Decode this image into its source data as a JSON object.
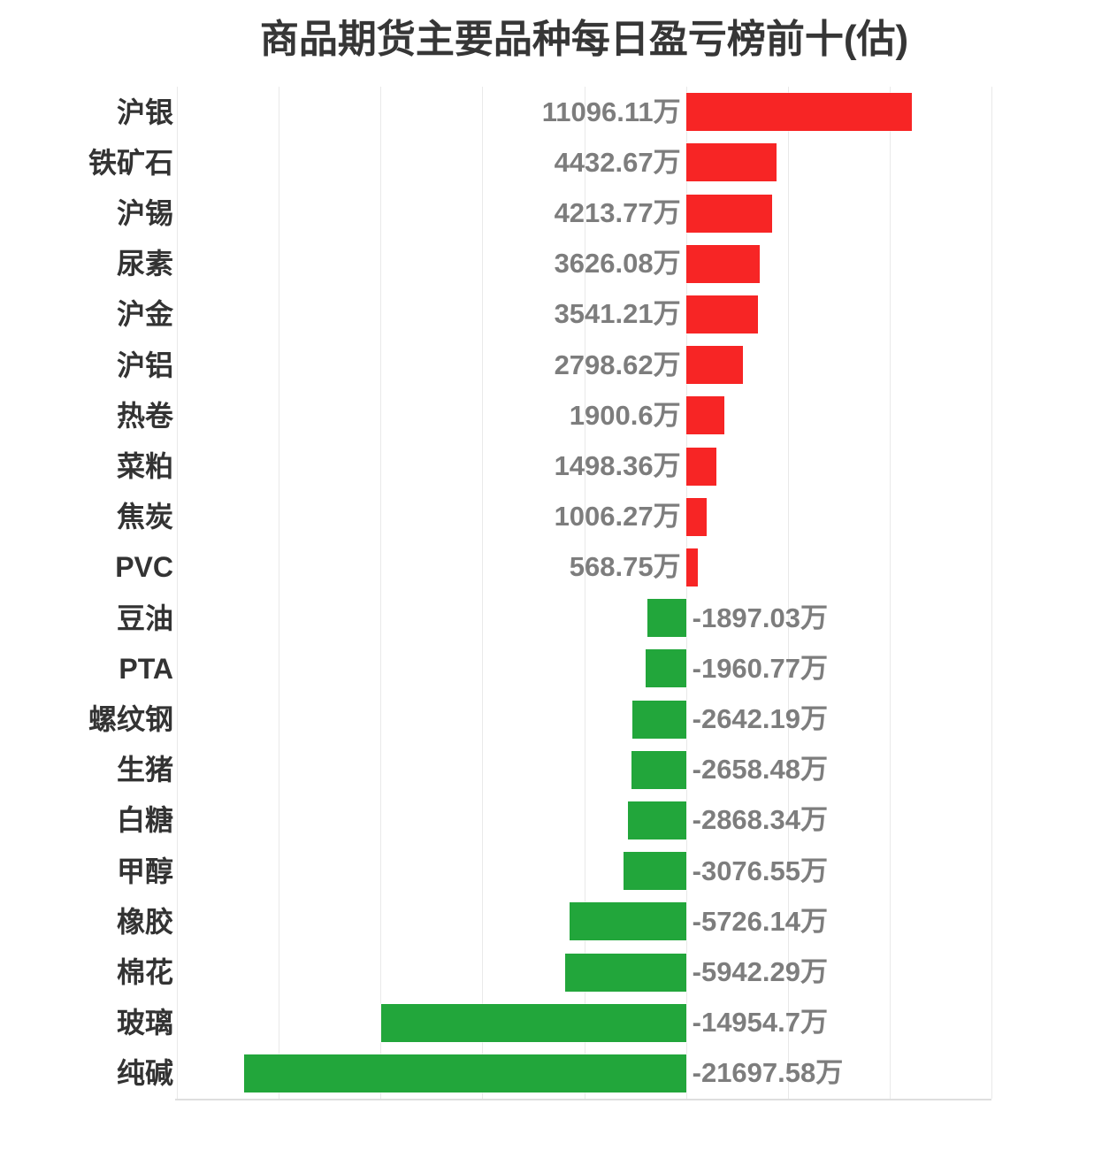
{
  "title": "商品期货主要品种每日盈亏榜前十(估)",
  "chart_data": {
    "type": "bar",
    "orientation": "horizontal",
    "title": "商品期货主要品种每日盈亏榜前十(估)",
    "unit": "万",
    "categories": [
      "沪银",
      "铁矿石",
      "沪锡",
      "尿素",
      "沪金",
      "沪铝",
      "热卷",
      "菜粕",
      "焦炭",
      "PVC",
      "豆油",
      "PTA",
      "螺纹钢",
      "生猪",
      "白糖",
      "甲醇",
      "橡胶",
      "棉花",
      "玻璃",
      "纯碱"
    ],
    "values": [
      11096.11,
      4432.67,
      4213.77,
      3626.08,
      3541.21,
      2798.62,
      1900.6,
      1498.36,
      1006.27,
      568.75,
      -1897.03,
      -1960.77,
      -2642.19,
      -2658.48,
      -2868.34,
      -3076.55,
      -5726.14,
      -5942.29,
      -14954.7,
      -21697.58
    ],
    "value_labels": [
      "11096.11万",
      "4432.67万",
      "4213.77万",
      "3626.08万",
      "3541.21万",
      "2798.62万",
      "1900.6万",
      "1498.36万",
      "1006.27万",
      "568.75万",
      "-1897.03万",
      "-1960.77万",
      "-2642.19万",
      "-2658.48万",
      "-2868.34万",
      "-3076.55万",
      "-5726.14万",
      "-5942.29万",
      "-14954.7万",
      "-21697.58万"
    ],
    "xlim": [
      -25000,
      15000
    ],
    "grid_interval": 5000,
    "grid_on": true,
    "legend": "none",
    "positive_color": "#f72525",
    "negative_color": "#22a63b",
    "gridline_color": "#e9e9e9",
    "axis_line_color": "#dedede",
    "title_color": "#363636",
    "category_label_color": "#333333",
    "value_label_color": "#7d7d7d"
  }
}
